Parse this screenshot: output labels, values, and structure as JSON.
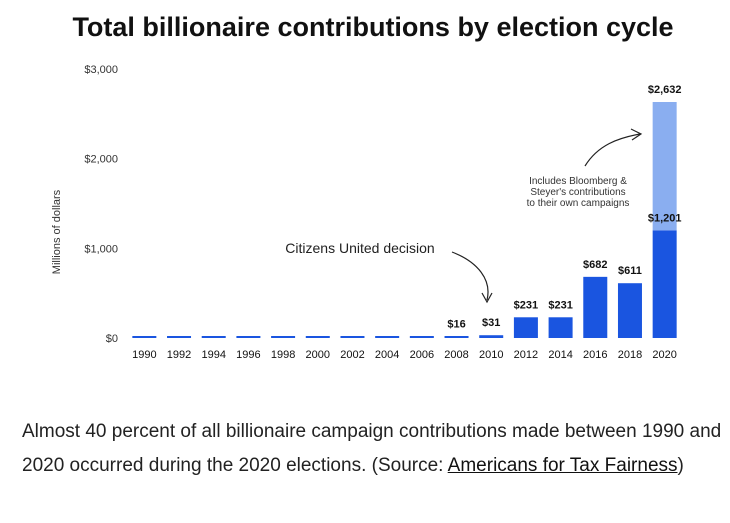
{
  "chart_data": {
    "type": "bar",
    "title": "Total billionaire contributions by election cycle",
    "ylabel": "Millions of dollars",
    "xlabel": "",
    "ylim": [
      0,
      3000
    ],
    "yticks": [
      {
        "value": 0,
        "label": "$0"
      },
      {
        "value": 1000,
        "label": "$1,000"
      },
      {
        "value": 2000,
        "label": "$2,000"
      },
      {
        "value": 3000,
        "label": "$3,000"
      }
    ],
    "categories": [
      "1990",
      "1992",
      "1994",
      "1996",
      "1998",
      "2000",
      "2002",
      "2004",
      "2006",
      "2008",
      "2010",
      "2012",
      "2014",
      "2016",
      "2018",
      "2020"
    ],
    "series": [
      {
        "name": "Contributions",
        "color": "#1a55e0",
        "values": [
          1,
          1,
          2,
          2,
          3,
          5,
          6,
          7,
          8,
          16,
          31,
          231,
          231,
          682,
          611,
          1201
        ]
      },
      {
        "name": "Bloomberg & Steyer self-funding",
        "color": "#8aaef0",
        "values": [
          0,
          0,
          0,
          0,
          0,
          0,
          0,
          0,
          0,
          0,
          0,
          0,
          0,
          0,
          0,
          1431
        ]
      }
    ],
    "data_labels": [
      {
        "category": "2008",
        "label": "$16",
        "value": 16
      },
      {
        "category": "2010",
        "label": "$31",
        "value": 31
      },
      {
        "category": "2012",
        "label": "$231",
        "value": 231
      },
      {
        "category": "2014",
        "label": "$231",
        "value": 231
      },
      {
        "category": "2016",
        "label": "$682",
        "value": 682
      },
      {
        "category": "2018",
        "label": "$611",
        "value": 611
      },
      {
        "category": "2020",
        "label": "$1,201",
        "value": 1201
      },
      {
        "category": "2020",
        "label": "$2,632",
        "value": 2632
      }
    ],
    "annotations": {
      "citizens_united": "Citizens United decision",
      "self_funding": [
        "Includes Bloomberg &",
        "Steyer's contributions",
        "to their own campaigns"
      ]
    }
  },
  "caption": {
    "text_before": "Almost 40 percent of all billionaire campaign contributions made between 1990 and 2020 occurred during the 2020 elections. (Source: ",
    "link_text": "Americans for Tax Fairness",
    "text_after": ")"
  }
}
